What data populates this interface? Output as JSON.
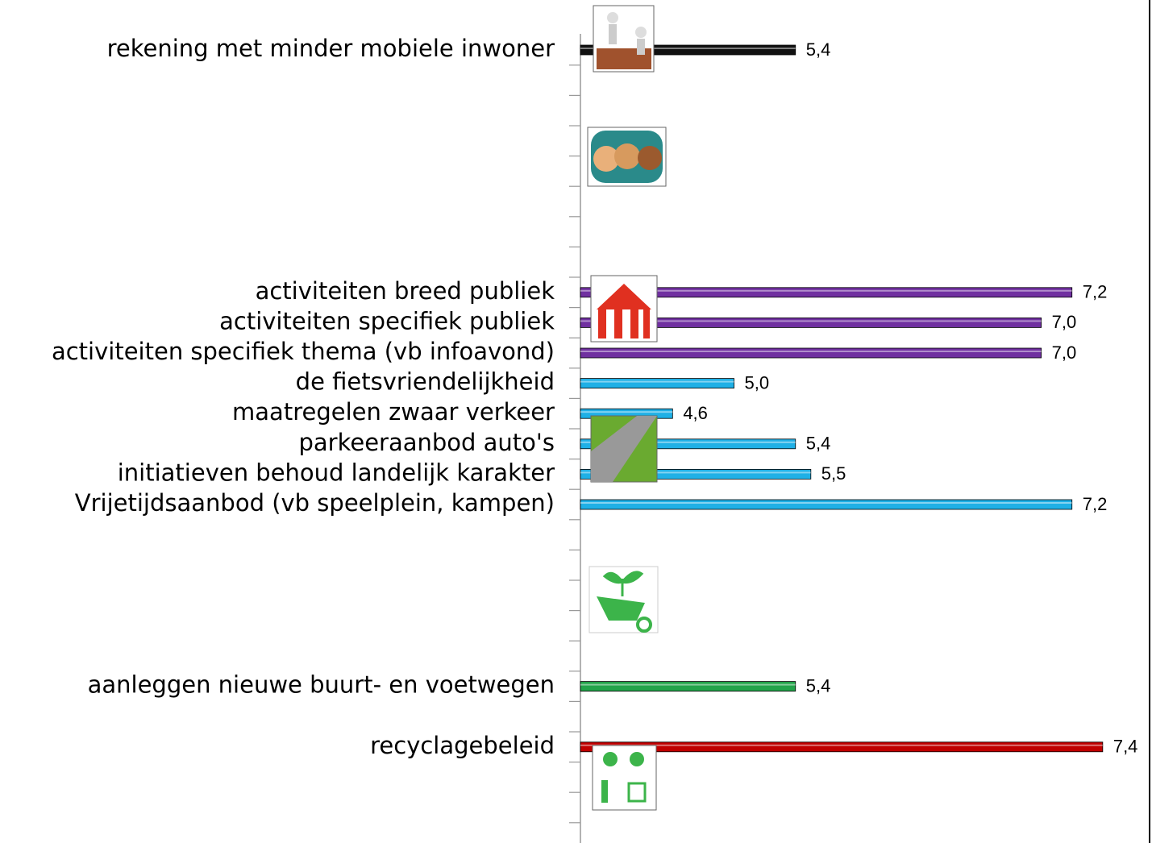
{
  "chart_data": {
    "type": "hbar",
    "categories": [
      "rekening  met minder mobiele inwoner",
      null,
      null,
      null,
      null,
      null,
      null,
      null,
      "activiteiten breed publiek",
      "activiteiten specifiek publiek",
      "activiteiten specifiek thema (vb infoavond)",
      "de fietsvriendelijkheid",
      "maatregelen zwaar verkeer",
      "parkeeraanbod auto's",
      "initiatieven behoud landelijk karakter",
      "Vrijetijdsaanbod (vb speelplein, kampen)",
      null,
      null,
      null,
      null,
      null,
      "aanleggen nieuwe buurt- en voetwegen",
      null,
      "recyclagebeleid",
      null,
      null,
      null
    ],
    "values": [
      5.4,
      null,
      null,
      null,
      null,
      null,
      null,
      null,
      7.2,
      7.0,
      7.0,
      5.0,
      4.6,
      5.4,
      5.5,
      7.2,
      null,
      null,
      null,
      null,
      null,
      5.4,
      null,
      7.4,
      null,
      null,
      null
    ],
    "value_labels": [
      "5,4",
      null,
      null,
      null,
      null,
      null,
      null,
      null,
      "7,2",
      "7,0",
      "7,0",
      "5,0",
      "4,6",
      "5,4",
      "5,5",
      "7,2",
      null,
      null,
      null,
      null,
      null,
      "5,4",
      null,
      "7,4",
      null,
      null,
      null
    ],
    "colors": [
      "#111111",
      null,
      null,
      null,
      null,
      null,
      null,
      null,
      "#7030a0",
      "#7030a0",
      "#7030a0",
      "#1fb0e6",
      "#1fb0e6",
      "#1fb0e6",
      "#1fb0e6",
      "#1fb0e6",
      null,
      null,
      null,
      null,
      null,
      "#22a34a",
      null,
      "#c00000",
      null,
      null,
      null
    ],
    "xlim": [
      4,
      7.7
    ]
  }
}
